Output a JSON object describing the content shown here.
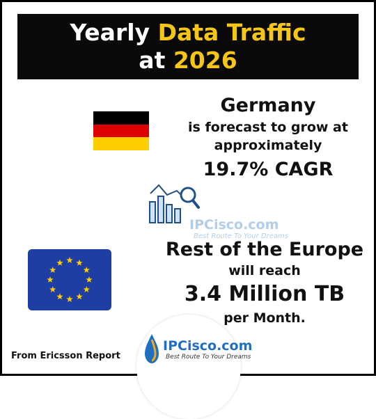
{
  "title": {
    "line1_pre": "Yearly",
    "line1_hl": "Data Traffic",
    "line2_pre": "at",
    "line2_hl": "2026"
  },
  "germany": {
    "country": "Germany",
    "line1": "is forecast to grow at",
    "line2": "approximately",
    "stat": "19.7% CAGR"
  },
  "europe": {
    "title": "Rest of the Europe",
    "line1": "will reach",
    "stat": "3.4 Million TB",
    "line2": "per Month."
  },
  "source": "From Ericsson Report",
  "watermark": {
    "brand": "IPCisco.com",
    "tagline": "Best Route To Your Dreams"
  },
  "logo": {
    "brand": "IPCisco.com",
    "tagline": "Best Route To Your Dreams"
  },
  "colors": {
    "highlight": "#f5c518",
    "title_bg": "#0a0a0a",
    "eu_blue": "#1f3ea3",
    "eu_star": "#ffcc00",
    "de_black": "#000000",
    "de_red": "#dd0000",
    "de_gold": "#ffce00",
    "brand_blue": "#1e6fbf"
  },
  "icons": {
    "germany_flag": "germany-flag-icon",
    "eu_flag": "eu-flag-icon",
    "chart": "bar-chart-magnifier-icon",
    "logo": "water-drop-logo-icon"
  }
}
